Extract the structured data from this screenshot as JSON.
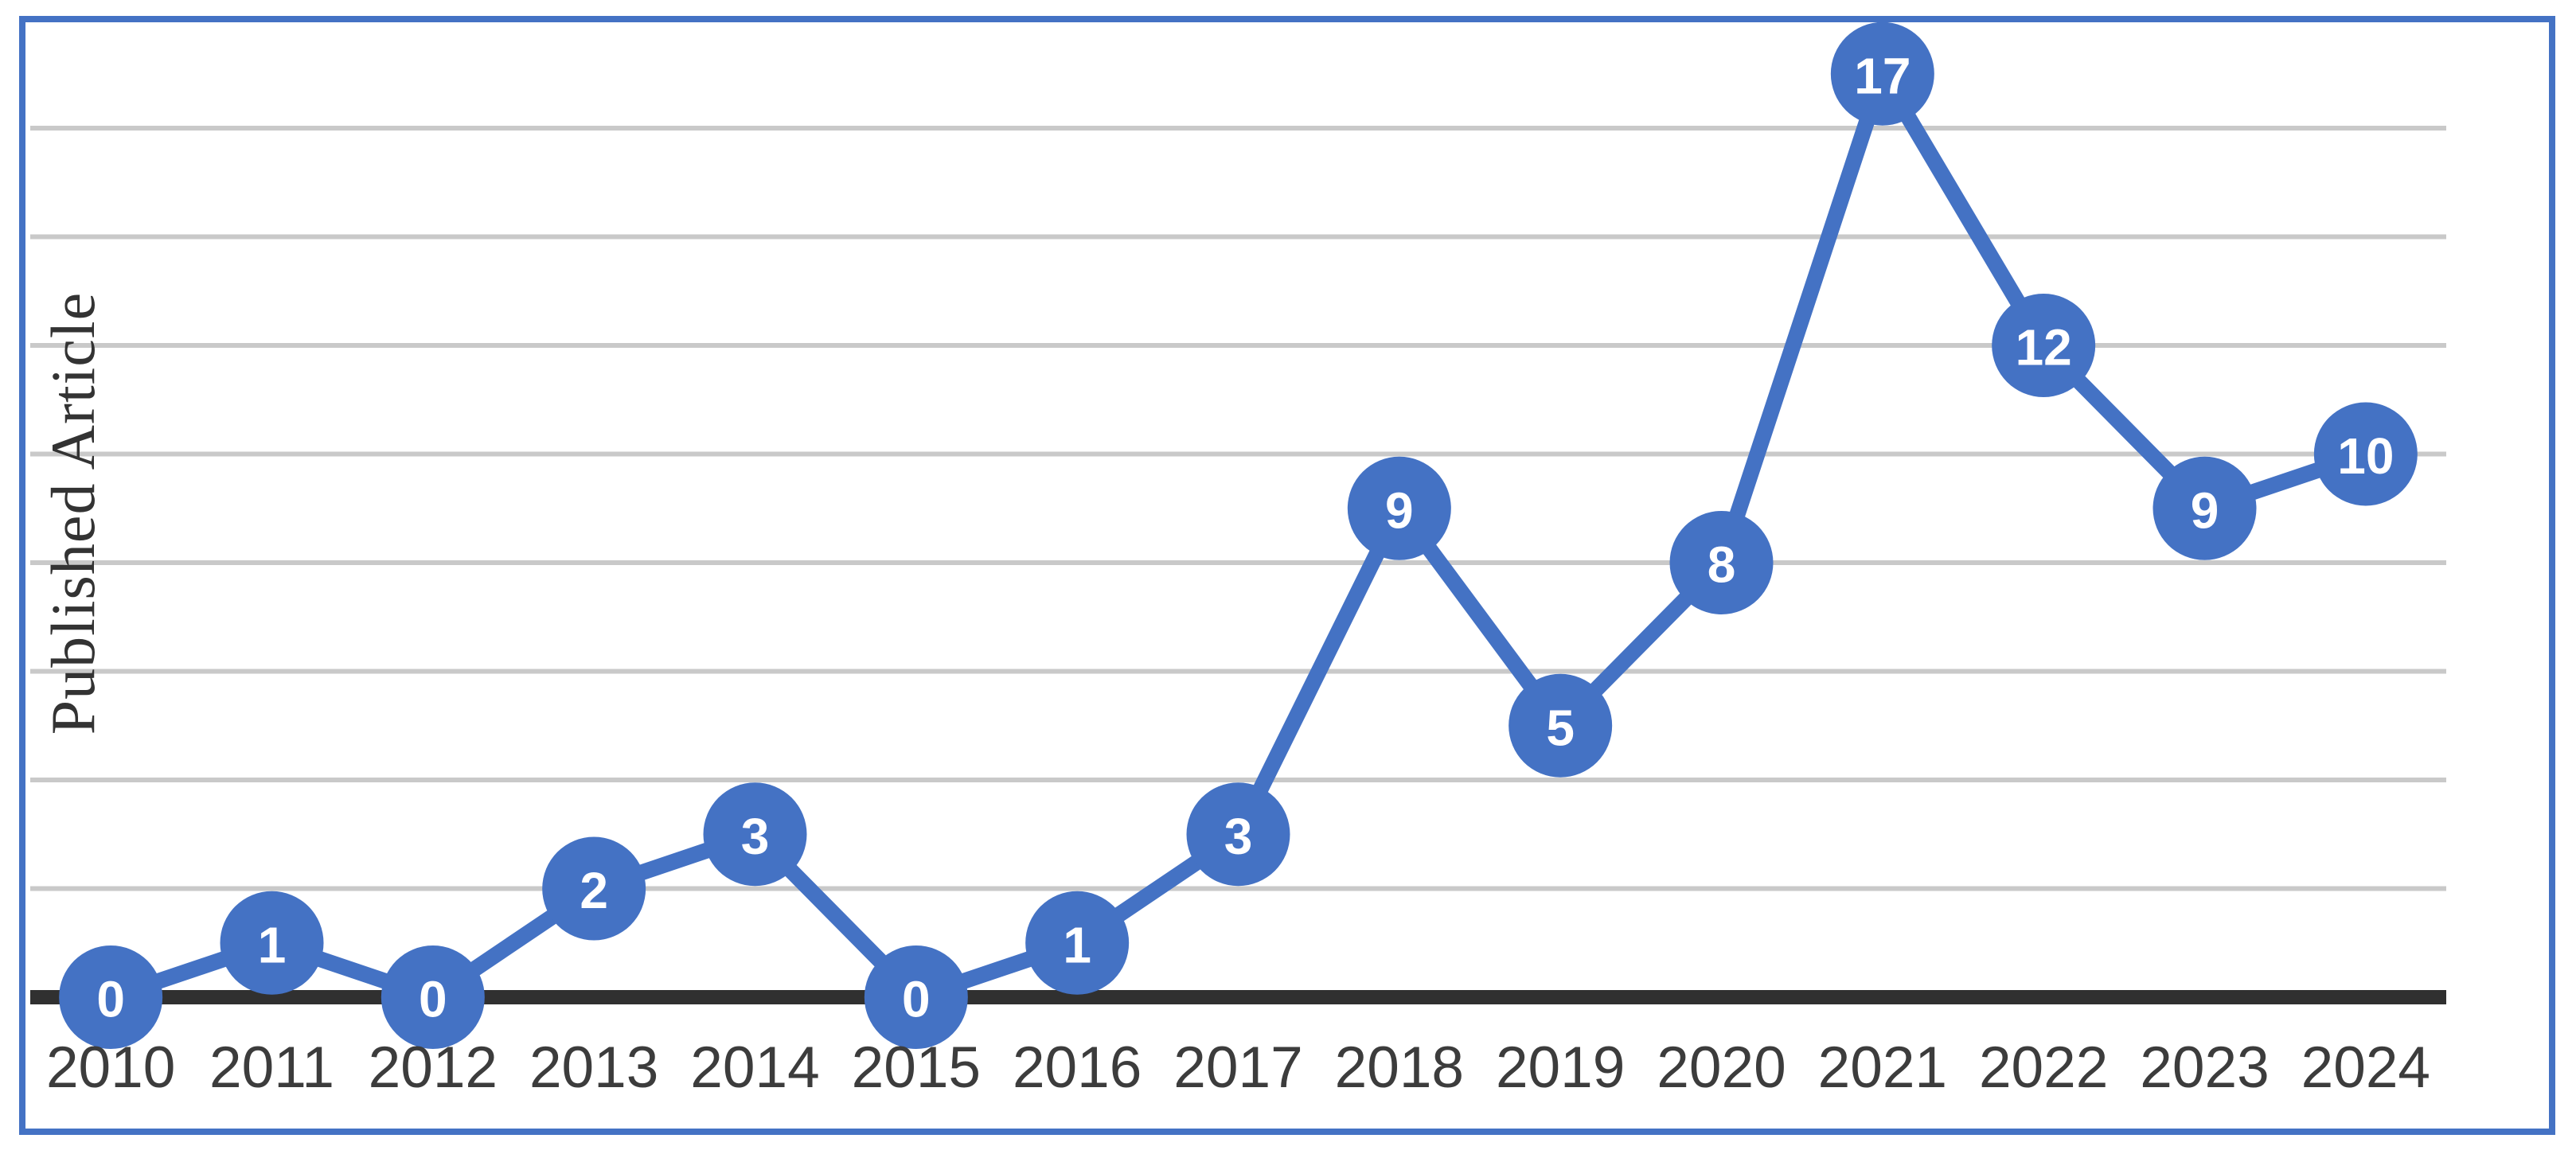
{
  "chart_data": {
    "type": "line",
    "title": "",
    "categories": [
      "2010",
      "2011",
      "2012",
      "2013",
      "2014",
      "2015",
      "2016",
      "2017",
      "2018",
      "2019",
      "2020",
      "2021",
      "2022",
      "2023",
      "2024"
    ],
    "series": [
      {
        "name": "Published Article",
        "values": [
          0,
          1,
          0,
          2,
          3,
          0,
          1,
          3,
          9,
          5,
          8,
          17,
          12,
          9,
          10
        ]
      }
    ],
    "data_labels": [
      0,
      1,
      0,
      2,
      3,
      0,
      1,
      3,
      9,
      5,
      8,
      17,
      12,
      9,
      10
    ],
    "xlabel": "",
    "ylabel": "Published Article",
    "ylim": [
      0,
      18
    ],
    "gridline_step": 2,
    "grid": true,
    "legend_position": "none",
    "marker_style": "filled-circle",
    "colors": {
      "line": "#4472C4",
      "marker": "#4472C4",
      "data_label_text": "#FFFFFF",
      "gridline": "#C9C9C9",
      "axis_line": "#303030",
      "tick_label": "#3C3C3C",
      "axis_title": "#333333",
      "chart_border": "#4472C4",
      "background": "#FFFFFF"
    }
  }
}
